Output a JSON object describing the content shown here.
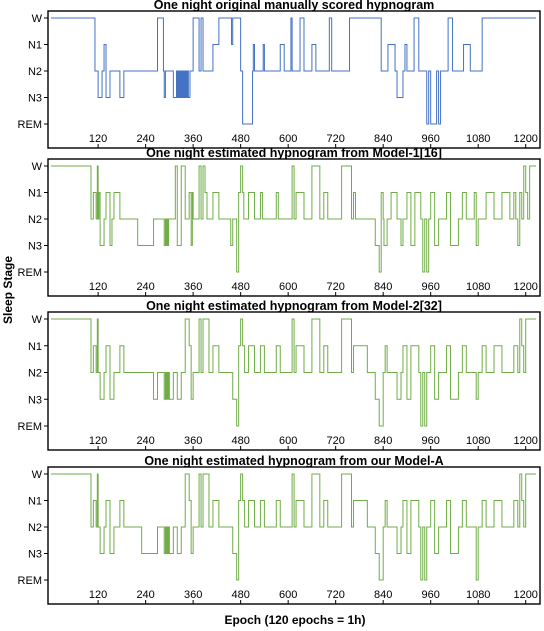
{
  "figure": {
    "ylabel": "Sleep Stage",
    "xlabel": "Epoch (120 epochs = 1h)"
  },
  "chart_data": [
    {
      "type": "line",
      "title": "One night original manually scored hypnogram",
      "color": "#4472c4",
      "yticklabels": [
        "W",
        "N1",
        "N2",
        "N3",
        "REM"
      ],
      "xticks": [
        120,
        240,
        360,
        480,
        600,
        720,
        840,
        960,
        1080,
        1200
      ],
      "xlim": [
        1,
        1226
      ],
      "x": [
        1,
        110,
        112,
        118,
        120,
        130,
        135,
        140,
        150,
        160,
        175,
        185,
        200,
        230,
        270,
        275,
        285,
        287,
        290,
        310,
        318,
        320,
        322,
        324,
        326,
        328,
        330,
        332,
        334,
        336,
        338,
        340,
        342,
        344,
        346,
        348,
        352,
        354,
        360,
        370,
        375,
        380,
        385,
        400,
        410,
        425,
        455,
        457,
        460,
        470,
        480,
        485,
        490,
        510,
        512,
        515,
        520,
        535,
        537,
        540,
        570,
        580,
        590,
        605,
        607,
        610,
        625,
        630,
        640,
        655,
        660,
        670,
        690,
        700,
        704,
        710,
        735,
        750,
        755,
        800,
        830,
        835,
        850,
        852,
        870,
        875,
        890,
        895,
        900,
        915,
        918,
        930,
        935,
        945,
        950,
        955,
        960,
        975,
        980,
        985,
        1000,
        1004,
        1015,
        1020,
        1040,
        1043,
        1060,
        1080,
        1090,
        1150,
        1226
      ],
      "y": [
        0,
        0,
        2,
        2,
        3,
        2,
        1,
        3,
        2,
        2,
        3,
        2,
        2,
        2,
        0,
        0,
        2,
        3,
        2,
        3,
        2,
        3,
        2,
        3,
        2,
        3,
        2,
        3,
        2,
        3,
        2,
        3,
        2,
        3,
        2,
        3,
        2,
        2,
        0,
        0,
        2,
        0,
        2,
        2,
        1,
        0,
        0,
        1,
        0,
        0,
        2,
        4,
        4,
        2,
        1,
        2,
        2,
        2,
        1,
        2,
        2,
        1,
        2,
        2,
        0,
        2,
        2,
        0,
        2,
        2,
        1,
        2,
        2,
        2,
        0,
        2,
        2,
        2,
        0,
        0,
        0,
        2,
        2,
        1,
        2,
        3,
        2,
        1,
        2,
        2,
        0,
        2,
        2,
        2,
        4,
        2,
        4,
        2,
        4,
        2,
        2,
        0,
        2,
        2,
        2,
        1,
        2,
        2,
        0,
        0,
        0
      ]
    },
    {
      "type": "line",
      "title": "One night estimated hypnogram from Model-1[16]",
      "color": "#70ad47",
      "yticklabels": [
        "W",
        "N1",
        "N2",
        "N3",
        "REM"
      ],
      "xticks": [
        120,
        240,
        360,
        480,
        600,
        720,
        840,
        960,
        1080,
        1200
      ],
      "xlim": [
        1,
        1226
      ],
      "x": [
        1,
        100,
        102,
        108,
        115,
        118,
        120,
        122,
        125,
        135,
        140,
        150,
        155,
        160,
        175,
        180,
        185,
        200,
        220,
        240,
        260,
        270,
        280,
        287,
        290,
        292,
        294,
        296,
        298,
        300,
        315,
        320,
        330,
        340,
        350,
        355,
        358,
        360,
        375,
        380,
        385,
        390,
        395,
        400,
        410,
        425,
        455,
        460,
        470,
        475,
        480,
        485,
        488,
        500,
        515,
        520,
        530,
        535,
        540,
        570,
        575,
        585,
        600,
        610,
        615,
        620,
        640,
        650,
        660,
        680,
        690,
        700,
        710,
        735,
        740,
        760,
        765,
        770,
        800,
        820,
        830,
        835,
        840,
        842,
        850,
        855,
        860,
        875,
        885,
        890,
        900,
        910,
        920,
        935,
        940,
        945,
        950,
        955,
        960,
        970,
        980,
        1000,
        1010,
        1030,
        1040,
        1050,
        1060,
        1070,
        1075,
        1080,
        1090,
        1100,
        1120,
        1140,
        1160,
        1165,
        1170,
        1175,
        1180,
        1185,
        1190,
        1195,
        1200,
        1205,
        1210,
        1226
      ],
      "y": [
        0,
        0,
        2,
        1,
        2,
        0,
        2,
        1,
        3,
        2,
        1,
        3,
        2,
        1,
        2,
        2,
        2,
        2,
        3,
        3,
        2,
        2,
        2,
        3,
        2,
        3,
        2,
        3,
        2,
        2,
        0,
        3,
        0,
        2,
        1,
        3,
        1,
        2,
        0,
        2,
        0,
        1,
        2,
        2,
        1,
        2,
        3,
        2,
        4,
        1,
        0,
        1,
        2,
        1,
        2,
        2,
        1,
        2,
        2,
        1,
        2,
        2,
        2,
        0,
        2,
        1,
        2,
        2,
        0,
        2,
        1,
        2,
        2,
        0,
        0,
        2,
        1,
        2,
        2,
        3,
        4,
        1,
        2,
        3,
        2,
        2,
        1,
        2,
        3,
        2,
        1,
        3,
        1,
        2,
        4,
        2,
        4,
        2,
        1,
        3,
        2,
        1,
        3,
        2,
        1,
        2,
        2,
        1,
        3,
        2,
        2,
        1,
        2,
        1,
        2,
        2,
        1,
        2,
        3,
        1,
        2,
        0,
        1,
        2,
        0,
        0
      ]
    },
    {
      "type": "line",
      "title": "One night estimated hypnogram from Model-2[32]",
      "color": "#70ad47",
      "yticklabels": [
        "W",
        "N1",
        "N2",
        "N3",
        "REM"
      ],
      "xticks": [
        120,
        240,
        360,
        480,
        600,
        720,
        840,
        960,
        1080,
        1200
      ],
      "xlim": [
        1,
        1226
      ],
      "x": [
        1,
        100,
        102,
        108,
        115,
        118,
        120,
        125,
        135,
        140,
        150,
        160,
        175,
        185,
        200,
        230,
        260,
        270,
        280,
        287,
        290,
        292,
        294,
        296,
        298,
        300,
        310,
        320,
        330,
        340,
        350,
        355,
        360,
        375,
        380,
        385,
        400,
        410,
        425,
        455,
        460,
        470,
        475,
        480,
        485,
        490,
        500,
        515,
        520,
        530,
        540,
        570,
        580,
        600,
        610,
        615,
        620,
        640,
        660,
        680,
        690,
        700,
        710,
        735,
        760,
        765,
        800,
        820,
        830,
        840,
        845,
        850,
        860,
        875,
        885,
        890,
        900,
        910,
        930,
        935,
        940,
        945,
        950,
        960,
        970,
        980,
        1000,
        1010,
        1030,
        1040,
        1050,
        1060,
        1075,
        1080,
        1090,
        1100,
        1120,
        1140,
        1160,
        1170,
        1180,
        1185,
        1190,
        1195,
        1200,
        1205,
        1226
      ],
      "y": [
        0,
        0,
        2,
        1,
        2,
        0,
        2,
        3,
        2,
        1,
        3,
        2,
        1,
        2,
        2,
        2,
        3,
        2,
        2,
        3,
        2,
        3,
        2,
        3,
        2,
        3,
        2,
        3,
        2,
        0,
        1,
        3,
        2,
        0,
        2,
        0,
        2,
        1,
        2,
        2,
        3,
        4,
        1,
        0,
        1,
        2,
        1,
        2,
        2,
        1,
        2,
        1,
        2,
        2,
        0,
        2,
        1,
        2,
        0,
        2,
        1,
        2,
        2,
        0,
        2,
        1,
        2,
        3,
        4,
        2,
        1,
        2,
        2,
        3,
        2,
        1,
        3,
        1,
        2,
        4,
        2,
        4,
        2,
        1,
        3,
        2,
        1,
        3,
        2,
        1,
        2,
        2,
        3,
        2,
        1,
        2,
        1,
        2,
        2,
        1,
        2,
        0,
        1,
        2,
        0,
        0,
        0
      ]
    },
    {
      "type": "line",
      "title": "One night estimated hypnogram from our Model-A",
      "color": "#70ad47",
      "yticklabels": [
        "W",
        "N1",
        "N2",
        "N3",
        "REM"
      ],
      "xticks": [
        120,
        240,
        360,
        480,
        600,
        720,
        840,
        960,
        1080,
        1200
      ],
      "xlim": [
        1,
        1226
      ],
      "x": [
        1,
        100,
        102,
        108,
        115,
        118,
        120,
        125,
        135,
        140,
        150,
        160,
        175,
        185,
        200,
        230,
        260,
        270,
        280,
        287,
        290,
        292,
        294,
        296,
        298,
        300,
        310,
        320,
        330,
        340,
        350,
        355,
        360,
        375,
        380,
        385,
        400,
        410,
        425,
        455,
        460,
        470,
        475,
        480,
        485,
        490,
        500,
        515,
        520,
        530,
        540,
        570,
        580,
        600,
        610,
        615,
        620,
        640,
        660,
        680,
        690,
        700,
        710,
        735,
        760,
        765,
        800,
        820,
        830,
        840,
        845,
        850,
        860,
        875,
        885,
        890,
        900,
        910,
        930,
        935,
        940,
        945,
        950,
        960,
        970,
        980,
        1000,
        1010,
        1030,
        1040,
        1050,
        1060,
        1075,
        1080,
        1090,
        1100,
        1120,
        1140,
        1160,
        1170,
        1180,
        1185,
        1190,
        1195,
        1200,
        1205,
        1226
      ],
      "y": [
        0,
        0,
        2,
        1,
        2,
        0,
        2,
        3,
        2,
        1,
        3,
        2,
        1,
        2,
        2,
        3,
        3,
        2,
        2,
        3,
        2,
        3,
        2,
        3,
        2,
        3,
        2,
        3,
        2,
        0,
        1,
        3,
        2,
        0,
        2,
        0,
        2,
        1,
        2,
        2,
        3,
        4,
        1,
        0,
        1,
        2,
        1,
        2,
        2,
        1,
        2,
        1,
        2,
        2,
        0,
        2,
        1,
        2,
        0,
        2,
        1,
        2,
        2,
        0,
        2,
        1,
        2,
        3,
        4,
        2,
        1,
        2,
        2,
        3,
        2,
        1,
        3,
        1,
        2,
        4,
        2,
        4,
        2,
        1,
        3,
        2,
        1,
        3,
        2,
        1,
        2,
        2,
        4,
        2,
        1,
        2,
        1,
        2,
        2,
        1,
        2,
        0,
        1,
        2,
        0,
        0,
        0
      ]
    }
  ]
}
